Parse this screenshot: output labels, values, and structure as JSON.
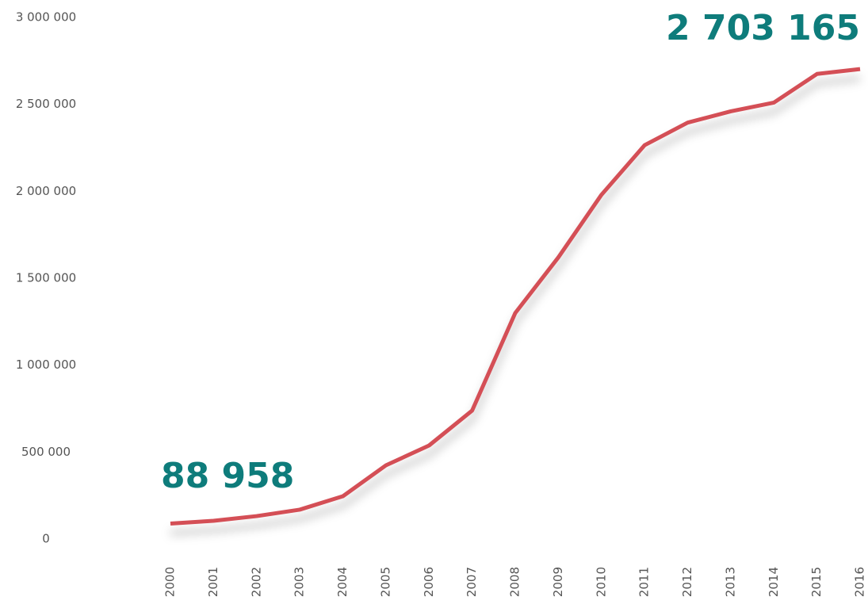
{
  "chart_data": {
    "type": "line",
    "annotations": [
      "88 958",
      "2 703 165"
    ],
    "categories": [
      "2000",
      "2001",
      "2002",
      "2003",
      "2004",
      "2005",
      "2006",
      "2007",
      "2008",
      "2009",
      "2010",
      "2011",
      "2012",
      "2013",
      "2014",
      "2015",
      "2016"
    ],
    "series": [
      {
        "name": null,
        "color": "#d44f57",
        "values": [
          88958,
          105000,
          132000,
          169000,
          246000,
          424000,
          538000,
          739000,
          1300000,
          1620000,
          1980000,
          2265000,
          2395000,
          2460000,
          2510000,
          2675000,
          2703165
        ]
      }
    ],
    "ylim": [
      0,
      3000000
    ],
    "yticks": [
      0,
      {
        "value": 500000,
        "label": "500 000"
      },
      {
        "value": 1000000,
        "label": "1 000 000"
      },
      {
        "value": 1500000,
        "label": "1 500 000"
      },
      {
        "value": 2000000,
        "label": "2 000 000"
      },
      {
        "value": 2500000,
        "label": "2 500 000"
      },
      {
        "value": 3000000,
        "label": "3 000 000"
      }
    ],
    "grid": false
  }
}
